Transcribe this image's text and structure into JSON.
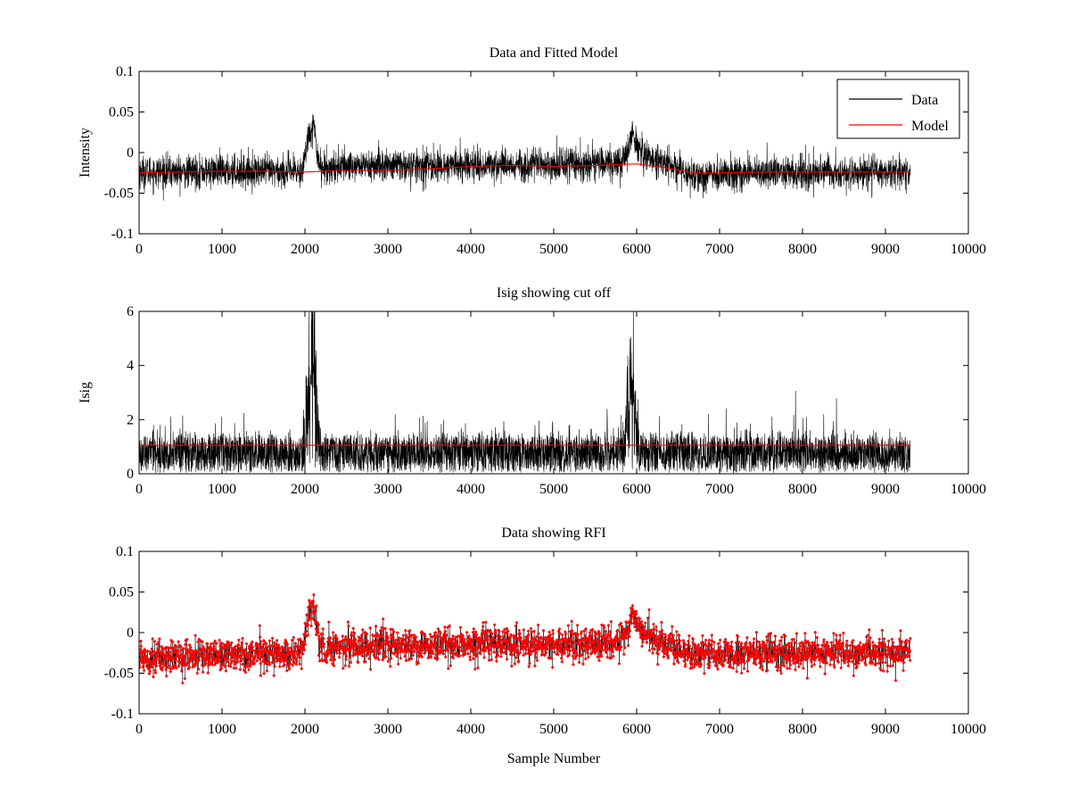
{
  "chart_data": [
    {
      "type": "line",
      "title": "Data and Fitted Model",
      "xlabel": "",
      "ylabel": "Intensity",
      "xlim": [
        0,
        10000
      ],
      "ylim": [
        -0.1,
        0.1
      ],
      "xticks": [
        0,
        1000,
        2000,
        3000,
        4000,
        5000,
        6000,
        7000,
        8000,
        9000,
        10000
      ],
      "yticks": [
        -0.1,
        -0.05,
        0,
        0.05,
        0.1
      ],
      "xtick_labels": [
        "0",
        "1000",
        "2000",
        "3000",
        "4000",
        "5000",
        "6000",
        "7000",
        "8000",
        "9000",
        "10000"
      ],
      "ytick_labels": [
        "-0.1",
        "-0.05",
        "0",
        "0.05",
        "0.1"
      ],
      "grid": false,
      "legend": {
        "placement": "top-right",
        "entries": [
          "Data",
          "Model"
        ]
      },
      "series": [
        {
          "name": "Data",
          "color": "#000000",
          "style": "noisy-line",
          "noise_sd": 0.01,
          "x_range": [
            0,
            9300
          ],
          "envelope_x": [
            0,
            500,
            1000,
            1500,
            1950,
            2000,
            2050,
            2100,
            2150,
            2200,
            2500,
            3000,
            3500,
            4000,
            4500,
            5000,
            5500,
            5800,
            5900,
            5950,
            6000,
            6100,
            6200,
            6500,
            6700,
            7000,
            8000,
            9000,
            9300
          ],
          "envelope_y": [
            -0.024,
            -0.024,
            -0.023,
            -0.023,
            -0.024,
            -0.005,
            0.025,
            0.035,
            0.0,
            -0.02,
            -0.016,
            -0.016,
            -0.017,
            -0.015,
            -0.015,
            -0.015,
            -0.013,
            -0.012,
            0.0,
            0.025,
            0.008,
            -0.002,
            -0.008,
            -0.02,
            -0.028,
            -0.026,
            -0.025,
            -0.024,
            -0.024
          ]
        },
        {
          "name": "Model",
          "color": "#ff0000",
          "style": "line",
          "x": [
            0,
            500,
            1000,
            1500,
            2000,
            2500,
            3000,
            3500,
            4000,
            4500,
            5000,
            5500,
            6000,
            6300,
            6700,
            7000,
            7500,
            8000,
            8500,
            9000,
            9300
          ],
          "y": [
            -0.025,
            -0.024,
            -0.023,
            -0.023,
            -0.024,
            -0.022,
            -0.022,
            -0.02,
            -0.017,
            -0.016,
            -0.017,
            -0.016,
            -0.014,
            -0.018,
            -0.025,
            -0.025,
            -0.024,
            -0.024,
            -0.024,
            -0.024,
            -0.024
          ]
        }
      ]
    },
    {
      "type": "line",
      "title": "Isig showing cut off",
      "xlabel": "",
      "ylabel": "Isig",
      "xlim": [
        0,
        10000
      ],
      "ylim": [
        0,
        6
      ],
      "xticks": [
        0,
        1000,
        2000,
        3000,
        4000,
        5000,
        6000,
        7000,
        8000,
        9000,
        10000
      ],
      "yticks": [
        0,
        2,
        4,
        6
      ],
      "xtick_labels": [
        "0",
        "1000",
        "2000",
        "3000",
        "4000",
        "5000",
        "6000",
        "7000",
        "8000",
        "9000",
        "10000"
      ],
      "ytick_labels": [
        "0",
        "2",
        "4",
        "6"
      ],
      "grid": false,
      "series": [
        {
          "color": "#000000",
          "style": "noisy-line",
          "noise_scale": 0.8,
          "x_range": [
            0,
            9300
          ],
          "envelope_x": [
            0,
            1950,
            2000,
            2050,
            2100,
            2150,
            2200,
            5850,
            5900,
            5950,
            6000,
            6050,
            9300
          ],
          "envelope_y": [
            0.7,
            0.7,
            1.5,
            3.5,
            4.2,
            1.5,
            0.7,
            0.7,
            2.5,
            3.2,
            1.2,
            0.7,
            0.7
          ]
        },
        {
          "color": "#ff0000",
          "style": "line",
          "x": [
            0,
            9300
          ],
          "y": [
            1.05,
            1.05
          ]
        }
      ]
    },
    {
      "type": "scatter",
      "title": "Data showing RFI",
      "xlabel": "Sample Number",
      "ylabel": "",
      "xlim": [
        0,
        10000
      ],
      "ylim": [
        -0.1,
        0.1
      ],
      "xticks": [
        0,
        1000,
        2000,
        3000,
        4000,
        5000,
        6000,
        7000,
        8000,
        9000,
        10000
      ],
      "yticks": [
        -0.1,
        -0.05,
        0,
        0.05,
        0.1
      ],
      "xtick_labels": [
        "0",
        "1000",
        "2000",
        "3000",
        "4000",
        "5000",
        "6000",
        "7000",
        "8000",
        "9000",
        "10000"
      ],
      "ytick_labels": [
        "-0.1",
        "-0.05",
        "0",
        "0.05",
        "0.1"
      ],
      "grid": false,
      "series": [
        {
          "color": "#ff0000",
          "style": "noisy-markers",
          "noise_sd": 0.01,
          "x_range": [
            0,
            9300
          ],
          "envelope_x": [
            0,
            500,
            1000,
            1500,
            1950,
            2000,
            2050,
            2100,
            2150,
            2200,
            2500,
            3000,
            3500,
            4000,
            4500,
            5000,
            5500,
            5800,
            5900,
            5950,
            6000,
            6100,
            6200,
            6500,
            6700,
            7000,
            8000,
            9000,
            9300
          ],
          "envelope_y": [
            -0.03,
            -0.03,
            -0.027,
            -0.026,
            -0.026,
            -0.005,
            0.025,
            0.035,
            0.0,
            -0.02,
            -0.016,
            -0.016,
            -0.017,
            -0.015,
            -0.015,
            -0.015,
            -0.013,
            -0.012,
            0.0,
            0.025,
            0.008,
            -0.002,
            -0.008,
            -0.02,
            -0.028,
            -0.026,
            -0.025,
            -0.025,
            -0.025
          ]
        }
      ]
    }
  ]
}
